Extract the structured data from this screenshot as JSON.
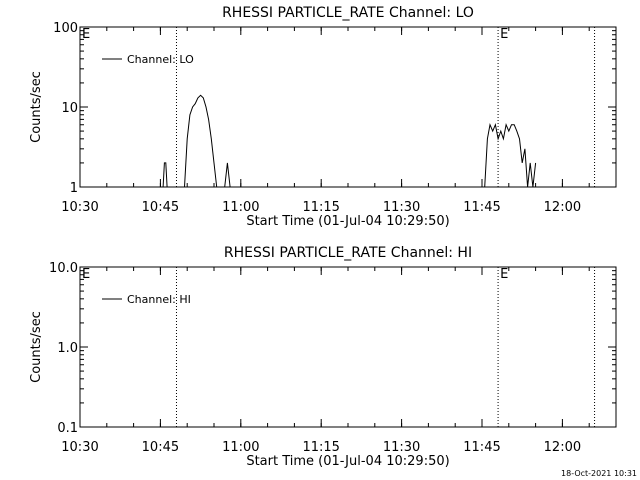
{
  "footer": {
    "timestamp": "18-Oct-2021 10:31"
  },
  "chart_data": [
    {
      "type": "line",
      "title": "RHESSI PARTICLE_RATE Channel: LO",
      "xlabel": "Start Time (01-Jul-04 10:29:50)",
      "ylabel": "Counts/sec",
      "y_scale": "log",
      "ylim": [
        1,
        100
      ],
      "xlim": [
        "10:30",
        "12:10"
      ],
      "x_ticks": [
        "10:30",
        "10:45",
        "11:00",
        "11:15",
        "11:30",
        "11:45",
        "12:00"
      ],
      "y_ticks": [
        "1",
        "10",
        "100"
      ],
      "legend": {
        "placement": "top-left",
        "entries": [
          "Channel: LO"
        ]
      },
      "markers": [
        {
          "time": "10:30",
          "label": "E"
        },
        {
          "time": "10:48",
          "label": ""
        },
        {
          "time": "11:48",
          "label": "E"
        },
        {
          "time": "12:06",
          "label": ""
        }
      ],
      "series": [
        {
          "name": "Channel: LO",
          "x": [
            "10:45:30",
            "10:45:45",
            "10:46:00",
            "10:46:15",
            "10:46:30",
            "10:49:30",
            "10:50:00",
            "10:50:30",
            "10:51:00",
            "10:51:30",
            "10:52:00",
            "10:52:30",
            "10:53:00",
            "10:53:30",
            "10:54:00",
            "10:54:30",
            "10:55:00",
            "10:55:30",
            "10:56:00",
            "10:56:30",
            "10:57:00",
            "10:57:30",
            "10:58:00",
            "10:58:30",
            "10:59:00",
            "11:45:30",
            "11:46:00",
            "11:46:30",
            "11:47:00",
            "11:47:30",
            "11:48:00",
            "11:48:30",
            "11:49:00",
            "11:49:30",
            "11:50:00",
            "11:50:30",
            "11:51:00",
            "11:51:30",
            "11:52:00",
            "11:52:30",
            "11:53:00",
            "11:53:30",
            "11:54:00",
            "11:54:30",
            "11:55:00"
          ],
          "y": [
            1,
            2,
            2,
            1,
            1,
            1,
            4,
            8,
            10,
            11,
            13,
            14,
            13,
            10,
            7,
            4,
            2,
            1,
            1,
            1,
            1,
            2,
            1,
            1,
            1,
            1,
            4,
            6,
            5,
            6,
            4,
            5,
            4,
            6,
            5,
            6,
            6,
            5,
            4,
            2,
            3,
            1,
            2,
            1,
            2
          ]
        }
      ]
    },
    {
      "type": "line",
      "title": "RHESSI PARTICLE_RATE Channel: HI",
      "xlabel": "Start Time (01-Jul-04 10:29:50)",
      "ylabel": "Counts/sec",
      "y_scale": "log",
      "ylim": [
        0.1,
        10
      ],
      "xlim": [
        "10:30",
        "12:10"
      ],
      "x_ticks": [
        "10:30",
        "10:45",
        "11:00",
        "11:15",
        "11:30",
        "11:45",
        "12:00"
      ],
      "y_ticks": [
        "0.1",
        "1.0",
        "10.0"
      ],
      "legend": {
        "placement": "top-left",
        "entries": [
          "Channel: HI"
        ]
      },
      "markers": [
        {
          "time": "10:30",
          "label": "E"
        },
        {
          "time": "10:48",
          "label": ""
        },
        {
          "time": "11:48",
          "label": "E"
        },
        {
          "time": "12:06",
          "label": ""
        }
      ],
      "series": [
        {
          "name": "Channel: HI",
          "x": [],
          "y": []
        }
      ]
    }
  ]
}
